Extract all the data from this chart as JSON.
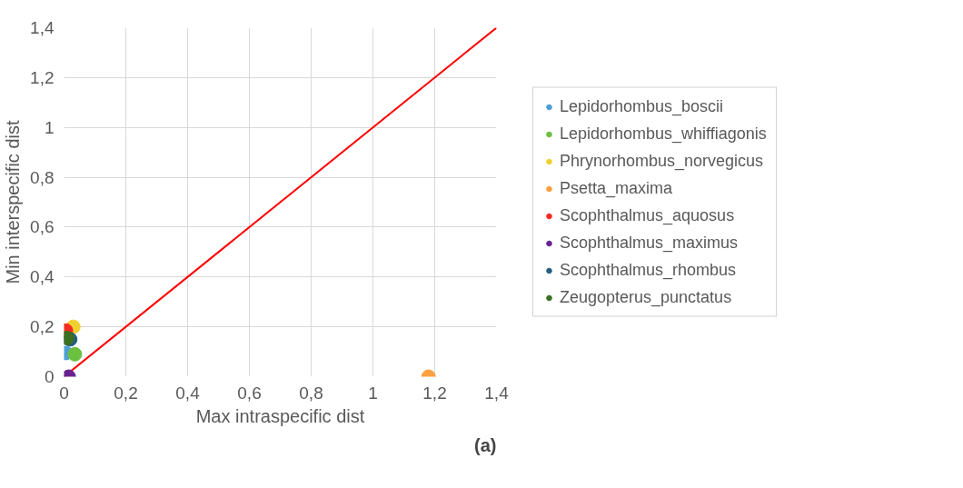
{
  "chart_data": {
    "type": "scatter",
    "xlabel": "Max intraspecific dist",
    "ylabel": "Min interspecific dist",
    "xlim": [
      0,
      1.4
    ],
    "ylim": [
      0,
      1.4
    ],
    "xticks": [
      0,
      {
        "value": 0.2,
        "label": "0,2"
      },
      {
        "value": 0.4,
        "label": "0,4"
      },
      {
        "value": 0.6,
        "label": "0,6"
      },
      {
        "value": 0.8,
        "label": "0,8"
      },
      1,
      {
        "value": 1.2,
        "label": "1,2"
      },
      {
        "value": 1.4,
        "label": "1,4"
      }
    ],
    "yticks": [
      0,
      {
        "value": 0.2,
        "label": "0,2"
      },
      {
        "value": 0.4,
        "label": "0,4"
      },
      {
        "value": 0.6,
        "label": "0,6"
      },
      {
        "value": 0.8,
        "label": "0,8"
      },
      1,
      {
        "value": 1.2,
        "label": "1,2"
      },
      {
        "value": 1.4,
        "label": "1,4"
      }
    ],
    "grid": true,
    "legend": "right",
    "marker": "circle",
    "series": [
      {
        "name": "Lepidorhombus_boscii",
        "color": "#4a9fd4",
        "x": [
          0.006
        ],
        "values": [
          0.095
        ]
      },
      {
        "name": "Lepidorhombus_whiffiagonis",
        "color": "#6cc040",
        "x": [
          0.035
        ],
        "values": [
          0.09
        ]
      },
      {
        "name": "Phrynorhombus_norvegicus",
        "color": "#f0d030",
        "x": [
          0.03
        ],
        "values": [
          0.2
        ]
      },
      {
        "name": "Psetta_maxima",
        "color": "#fca040",
        "x": [
          1.18
        ],
        "values": [
          0
        ]
      },
      {
        "name": "Scophthalmus_aquosus",
        "color": "#f52a20",
        "x": [
          0.006
        ],
        "values": [
          0.185
        ]
      },
      {
        "name": "Scophthalmus_maximus",
        "color": "#6a2090",
        "x": [
          0.015
        ],
        "values": [
          0
        ]
      },
      {
        "name": "Scophthalmus_rhombus",
        "color": "#255e80",
        "x": [
          0.02
        ],
        "values": [
          0.15
        ]
      },
      {
        "name": "Zeugopterus_punctatus",
        "color": "#3a7020",
        "x": [
          0.01
        ],
        "values": [
          0.155
        ]
      },
      {
        "type": "line",
        "marker": "none",
        "color": "#ff0000",
        "x": [
          0,
          1.4
        ],
        "values": [
          0,
          1.4
        ]
      }
    ],
    "annotations": [
      "(a)"
    ]
  }
}
